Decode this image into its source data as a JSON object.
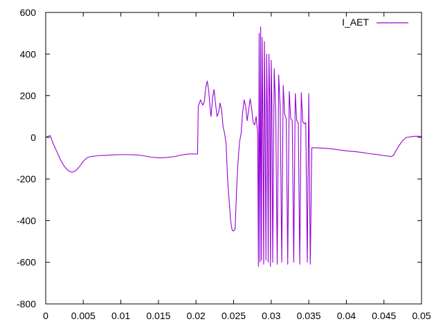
{
  "chart_data": {
    "type": "line",
    "title": "",
    "xlabel": "",
    "ylabel": "",
    "xlim": [
      0,
      0.05
    ],
    "ylim": [
      -800,
      600
    ],
    "x_ticks": [
      0,
      0.005,
      0.01,
      0.015,
      0.02,
      0.025,
      0.03,
      0.035,
      0.04,
      0.045,
      0.05
    ],
    "x_tick_labels": [
      "0",
      "0.005",
      "0.01",
      "0.015",
      "0.02",
      "0.025",
      "0.03",
      "0.035",
      "0.04",
      "0.045",
      "0.05"
    ],
    "y_ticks": [
      -800,
      -600,
      -400,
      -200,
      0,
      200,
      400,
      600
    ],
    "y_tick_labels": [
      "-800",
      "-600",
      "-400",
      "-200",
      "0",
      "200",
      "400",
      "600"
    ],
    "grid": false,
    "legend_position": "top-right",
    "series": [
      {
        "name": "I_AET",
        "color": "#9400d3",
        "points": [
          [
            0.0,
            0
          ],
          [
            0.0003,
            5
          ],
          [
            0.0006,
            8
          ],
          [
            0.001,
            -30
          ],
          [
            0.0015,
            -70
          ],
          [
            0.002,
            -110
          ],
          [
            0.0025,
            -140
          ],
          [
            0.003,
            -160
          ],
          [
            0.0035,
            -168
          ],
          [
            0.004,
            -160
          ],
          [
            0.0045,
            -140
          ],
          [
            0.005,
            -115
          ],
          [
            0.0055,
            -98
          ],
          [
            0.006,
            -92
          ],
          [
            0.0065,
            -90
          ],
          [
            0.007,
            -88
          ],
          [
            0.008,
            -86
          ],
          [
            0.009,
            -84
          ],
          [
            0.01,
            -83
          ],
          [
            0.011,
            -83
          ],
          [
            0.012,
            -84
          ],
          [
            0.013,
            -88
          ],
          [
            0.014,
            -95
          ],
          [
            0.015,
            -98
          ],
          [
            0.016,
            -97
          ],
          [
            0.017,
            -93
          ],
          [
            0.018,
            -85
          ],
          [
            0.019,
            -80
          ],
          [
            0.0202,
            -80
          ],
          [
            0.0203,
            150
          ],
          [
            0.0206,
            180
          ],
          [
            0.0209,
            155
          ],
          [
            0.0211,
            170
          ],
          [
            0.0213,
            240
          ],
          [
            0.0215,
            270
          ],
          [
            0.0217,
            220
          ],
          [
            0.0219,
            130
          ],
          [
            0.022,
            100
          ],
          [
            0.0222,
            190
          ],
          [
            0.0224,
            230
          ],
          [
            0.0226,
            160
          ],
          [
            0.0228,
            100
          ],
          [
            0.023,
            120
          ],
          [
            0.0232,
            165
          ],
          [
            0.0234,
            130
          ],
          [
            0.0236,
            50
          ],
          [
            0.0238,
            20
          ],
          [
            0.024,
            -30
          ],
          [
            0.0242,
            -200
          ],
          [
            0.0244,
            -300
          ],
          [
            0.0246,
            -400
          ],
          [
            0.0248,
            -445
          ],
          [
            0.025,
            -450
          ],
          [
            0.0252,
            -440
          ],
          [
            0.0254,
            -250
          ],
          [
            0.0256,
            -110
          ],
          [
            0.0258,
            -20
          ],
          [
            0.026,
            20
          ],
          [
            0.0262,
            120
          ],
          [
            0.0264,
            180
          ],
          [
            0.0266,
            150
          ],
          [
            0.0268,
            80
          ],
          [
            0.027,
            130
          ],
          [
            0.0272,
            185
          ],
          [
            0.0274,
            140
          ],
          [
            0.0276,
            70
          ],
          [
            0.0278,
            60
          ],
          [
            0.028,
            100
          ],
          [
            0.0282,
            20
          ],
          [
            0.0283,
            -620
          ],
          [
            0.0284,
            500
          ],
          [
            0.0285,
            -600
          ],
          [
            0.0286,
            530
          ],
          [
            0.0287,
            -590
          ],
          [
            0.0288,
            480
          ],
          [
            0.0289,
            50
          ],
          [
            0.029,
            -610
          ],
          [
            0.0291,
            460
          ],
          [
            0.0292,
            30
          ],
          [
            0.0293,
            -590
          ],
          [
            0.0294,
            400
          ],
          [
            0.0295,
            100
          ],
          [
            0.0296,
            -600
          ],
          [
            0.0297,
            400
          ],
          [
            0.0298,
            200
          ],
          [
            0.0299,
            -620
          ],
          [
            0.03,
            370
          ],
          [
            0.0301,
            150
          ],
          [
            0.0302,
            -600
          ],
          [
            0.0304,
            330
          ],
          [
            0.0306,
            130
          ],
          [
            0.0308,
            -610
          ],
          [
            0.031,
            300
          ],
          [
            0.0312,
            140
          ],
          [
            0.0314,
            -600
          ],
          [
            0.0316,
            250
          ],
          [
            0.0318,
            110
          ],
          [
            0.032,
            90
          ],
          [
            0.0322,
            -610
          ],
          [
            0.0324,
            220
          ],
          [
            0.0326,
            90
          ],
          [
            0.0328,
            80
          ],
          [
            0.033,
            -600
          ],
          [
            0.0332,
            210
          ],
          [
            0.0334,
            80
          ],
          [
            0.0336,
            70
          ],
          [
            0.0338,
            -610
          ],
          [
            0.034,
            215
          ],
          [
            0.0342,
            75
          ],
          [
            0.0344,
            65
          ],
          [
            0.0346,
            70
          ],
          [
            0.0348,
            -600
          ],
          [
            0.035,
            210
          ],
          [
            0.0352,
            -610
          ],
          [
            0.0354,
            -50
          ],
          [
            0.036,
            -50
          ],
          [
            0.037,
            -52
          ],
          [
            0.038,
            -55
          ],
          [
            0.039,
            -60
          ],
          [
            0.04,
            -65
          ],
          [
            0.041,
            -68
          ],
          [
            0.042,
            -72
          ],
          [
            0.043,
            -78
          ],
          [
            0.044,
            -82
          ],
          [
            0.045,
            -88
          ],
          [
            0.046,
            -92
          ],
          [
            0.0463,
            -85
          ],
          [
            0.0465,
            -70
          ],
          [
            0.047,
            -40
          ],
          [
            0.0475,
            -15
          ],
          [
            0.048,
            0
          ],
          [
            0.049,
            5
          ],
          [
            0.05,
            5
          ]
        ]
      }
    ]
  }
}
